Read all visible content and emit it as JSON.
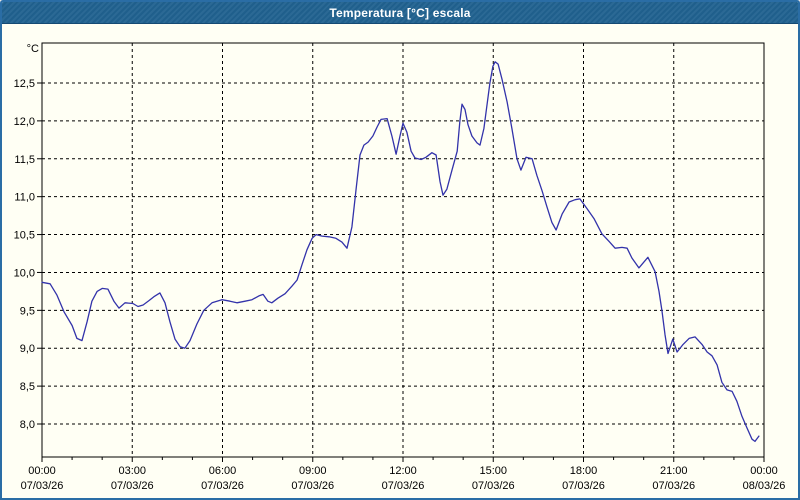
{
  "window": {
    "title": "Temperatura [°C] escala",
    "title_bar_color": "#20618f",
    "border_color": "#2a6da5",
    "background_color": "#fffff4"
  },
  "chart_data": {
    "type": "line",
    "title": "Temperatura [°C] escala",
    "grid": "dashed",
    "legend": "none",
    "line_color": "#3333aa",
    "axis_color": "#000000",
    "y_axis": {
      "unit": "°C",
      "tick_step": 0.5,
      "ticks": [
        {
          "value": 12.5,
          "label": "12,5"
        },
        {
          "value": 12.0,
          "label": "12,0"
        },
        {
          "value": 11.5,
          "label": "11,5"
        },
        {
          "value": 11.0,
          "label": "11,0"
        },
        {
          "value": 10.5,
          "label": "10,5"
        },
        {
          "value": 10.0,
          "label": "10,0"
        },
        {
          "value": 9.5,
          "label": "9,5"
        },
        {
          "value": 9.0,
          "label": "9,0"
        },
        {
          "value": 8.5,
          "label": "8,5"
        },
        {
          "value": 8.0,
          "label": "8,0"
        }
      ],
      "visible_range": [
        7.55,
        13.05
      ]
    },
    "x_axis": {
      "range_hours": [
        0,
        24
      ],
      "major_tick_every_hours": 3,
      "minor_tick_every_hours": 1,
      "ticks": [
        {
          "hour": 0,
          "time": "00:00",
          "date": "07/03/26"
        },
        {
          "hour": 3,
          "time": "03:00",
          "date": "07/03/26"
        },
        {
          "hour": 6,
          "time": "06:00",
          "date": "07/03/26"
        },
        {
          "hour": 9,
          "time": "09:00",
          "date": "07/03/26"
        },
        {
          "hour": 12,
          "time": "12:00",
          "date": "07/03/26"
        },
        {
          "hour": 15,
          "time": "15:00",
          "date": "07/03/26"
        },
        {
          "hour": 18,
          "time": "18:00",
          "date": "07/03/26"
        },
        {
          "hour": 21,
          "time": "21:00",
          "date": "07/03/26"
        },
        {
          "hour": 24,
          "time": "00:00",
          "date": "08/03/26"
        }
      ]
    },
    "series": [
      {
        "name": "Temperatura",
        "points": [
          [
            0,
            9.87
          ],
          [
            0.27,
            9.85
          ],
          [
            0.5,
            9.7
          ],
          [
            0.73,
            9.48
          ],
          [
            1,
            9.3
          ],
          [
            1.16,
            9.13
          ],
          [
            1.33,
            9.1
          ],
          [
            1.5,
            9.35
          ],
          [
            1.66,
            9.62
          ],
          [
            1.83,
            9.75
          ],
          [
            2,
            9.79
          ],
          [
            2.19,
            9.78
          ],
          [
            2.39,
            9.62
          ],
          [
            2.56,
            9.53
          ],
          [
            2.76,
            9.6
          ],
          [
            3.02,
            9.59
          ],
          [
            3.19,
            9.55
          ],
          [
            3.36,
            9.57
          ],
          [
            3.56,
            9.63
          ],
          [
            3.72,
            9.68
          ],
          [
            3.92,
            9.73
          ],
          [
            4.09,
            9.6
          ],
          [
            4.25,
            9.35
          ],
          [
            4.42,
            9.12
          ],
          [
            4.59,
            9.02
          ],
          [
            4.75,
            9.0
          ],
          [
            4.92,
            9.1
          ],
          [
            5.15,
            9.32
          ],
          [
            5.38,
            9.5
          ],
          [
            5.65,
            9.6
          ],
          [
            5.98,
            9.64
          ],
          [
            6.25,
            9.62
          ],
          [
            6.48,
            9.6
          ],
          [
            6.75,
            9.62
          ],
          [
            6.98,
            9.64
          ],
          [
            7.21,
            9.69
          ],
          [
            7.35,
            9.71
          ],
          [
            7.51,
            9.62
          ],
          [
            7.64,
            9.6
          ],
          [
            7.84,
            9.66
          ],
          [
            8.08,
            9.72
          ],
          [
            8.31,
            9.82
          ],
          [
            8.48,
            9.9
          ],
          [
            8.64,
            10.1
          ],
          [
            8.81,
            10.3
          ],
          [
            8.98,
            10.45
          ],
          [
            9.11,
            10.5
          ],
          [
            9.31,
            10.48
          ],
          [
            9.54,
            10.47
          ],
          [
            9.77,
            10.45
          ],
          [
            9.97,
            10.4
          ],
          [
            10.14,
            10.32
          ],
          [
            10.3,
            10.6
          ],
          [
            10.44,
            11.1
          ],
          [
            10.57,
            11.55
          ],
          [
            10.7,
            11.68
          ],
          [
            10.84,
            11.72
          ],
          [
            11,
            11.8
          ],
          [
            11.14,
            11.92
          ],
          [
            11.27,
            12.02
          ],
          [
            11.47,
            12.03
          ],
          [
            11.63,
            11.8
          ],
          [
            11.77,
            11.56
          ],
          [
            11.9,
            11.8
          ],
          [
            12,
            11.97
          ],
          [
            12.13,
            11.85
          ],
          [
            12.27,
            11.6
          ],
          [
            12.4,
            11.51
          ],
          [
            12.6,
            11.49
          ],
          [
            12.76,
            11.52
          ],
          [
            12.96,
            11.58
          ],
          [
            13.1,
            11.55
          ],
          [
            13.23,
            11.2
          ],
          [
            13.33,
            11.02
          ],
          [
            13.46,
            11.1
          ],
          [
            13.63,
            11.35
          ],
          [
            13.8,
            11.6
          ],
          [
            13.89,
            12.0
          ],
          [
            13.96,
            12.22
          ],
          [
            14.06,
            12.15
          ],
          [
            14.16,
            11.95
          ],
          [
            14.29,
            11.8
          ],
          [
            14.46,
            11.71
          ],
          [
            14.56,
            11.68
          ],
          [
            14.69,
            11.9
          ],
          [
            14.79,
            12.2
          ],
          [
            14.89,
            12.5
          ],
          [
            14.99,
            12.72
          ],
          [
            15.06,
            12.78
          ],
          [
            15.16,
            12.75
          ],
          [
            15.29,
            12.55
          ],
          [
            15.46,
            12.25
          ],
          [
            15.62,
            11.9
          ],
          [
            15.79,
            11.5
          ],
          [
            15.92,
            11.35
          ],
          [
            16.09,
            11.52
          ],
          [
            16.29,
            11.5
          ],
          [
            16.45,
            11.28
          ],
          [
            16.62,
            11.08
          ],
          [
            16.79,
            10.86
          ],
          [
            16.95,
            10.66
          ],
          [
            17.09,
            10.56
          ],
          [
            17.29,
            10.77
          ],
          [
            17.52,
            10.93
          ],
          [
            17.72,
            10.96
          ],
          [
            17.88,
            10.97
          ],
          [
            18.12,
            10.84
          ],
          [
            18.35,
            10.71
          ],
          [
            18.61,
            10.51
          ],
          [
            18.85,
            10.41
          ],
          [
            19.05,
            10.32
          ],
          [
            19.28,
            10.33
          ],
          [
            19.45,
            10.32
          ],
          [
            19.61,
            10.19
          ],
          [
            19.84,
            10.06
          ],
          [
            20.14,
            10.2
          ],
          [
            20.38,
            10.01
          ],
          [
            20.51,
            9.75
          ],
          [
            20.61,
            9.49
          ],
          [
            20.71,
            9.18
          ],
          [
            20.81,
            8.93
          ],
          [
            20.97,
            9.12
          ],
          [
            21.11,
            8.95
          ],
          [
            21.31,
            9.05
          ],
          [
            21.51,
            9.13
          ],
          [
            21.71,
            9.15
          ],
          [
            21.94,
            9.05
          ],
          [
            22.11,
            8.95
          ],
          [
            22.27,
            8.9
          ],
          [
            22.44,
            8.78
          ],
          [
            22.6,
            8.55
          ],
          [
            22.77,
            8.45
          ],
          [
            22.94,
            8.43
          ],
          [
            23.1,
            8.3
          ],
          [
            23.27,
            8.1
          ],
          [
            23.43,
            7.95
          ],
          [
            23.6,
            7.8
          ],
          [
            23.7,
            7.77
          ],
          [
            23.83,
            7.84
          ]
        ]
      }
    ]
  }
}
